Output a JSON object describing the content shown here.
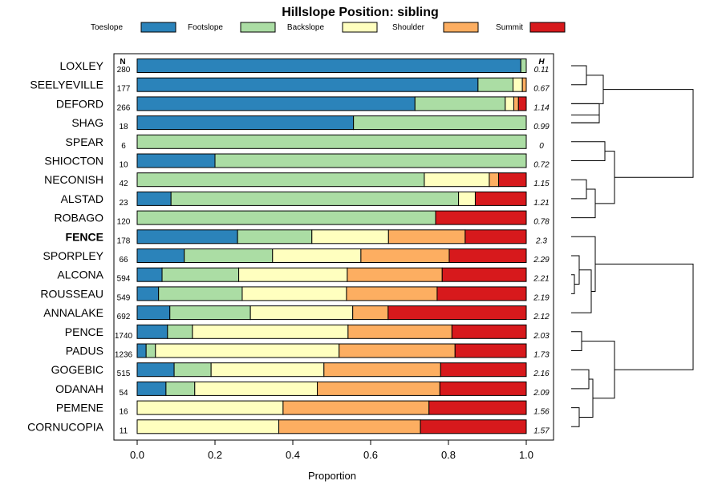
{
  "chart_data": {
    "type": "bar",
    "orientation": "horizontal",
    "stacked": true,
    "title": "Hillslope Position: sibling",
    "xlabel": "Proportion",
    "xlim": [
      0,
      1
    ],
    "xticks": [
      "0.0",
      "0.2",
      "0.4",
      "0.6",
      "0.8",
      "1.0"
    ],
    "n_header": "N",
    "h_header": "H",
    "legend": [
      {
        "name": "Toeslope",
        "color": "#2b83ba"
      },
      {
        "name": "Footslope",
        "color": "#abdda4"
      },
      {
        "name": "Backslope",
        "color": "#ffffbf"
      },
      {
        "name": "Shoulder",
        "color": "#fdae61"
      },
      {
        "name": "Summit",
        "color": "#d7191c"
      }
    ],
    "rows": [
      {
        "name": "LOXLEY",
        "n": "280",
        "h": "0.11",
        "bold": false,
        "values": [
          0.986,
          0.014,
          0,
          0,
          0
        ]
      },
      {
        "name": "SEELYEVILLE",
        "n": "177",
        "h": "0.67",
        "bold": false,
        "values": [
          0.876,
          0.09,
          0.024,
          0.01,
          0
        ]
      },
      {
        "name": "DEFORD",
        "n": "266",
        "h": "1.14",
        "bold": false,
        "values": [
          0.714,
          0.232,
          0.022,
          0.012,
          0.02
        ]
      },
      {
        "name": "SHAG",
        "n": "18",
        "h": "0.99",
        "bold": false,
        "values": [
          0.556,
          0.444,
          0,
          0,
          0
        ]
      },
      {
        "name": "SPEAR",
        "n": "6",
        "h": "0",
        "bold": false,
        "values": [
          0,
          1.0,
          0,
          0,
          0
        ]
      },
      {
        "name": "SHIOCTON",
        "n": "10",
        "h": "0.72",
        "bold": false,
        "values": [
          0.2,
          0.8,
          0,
          0,
          0
        ]
      },
      {
        "name": "NECONISH",
        "n": "42",
        "h": "1.15",
        "bold": false,
        "values": [
          0,
          0.738,
          0.167,
          0.024,
          0.071
        ]
      },
      {
        "name": "ALSTAD",
        "n": "23",
        "h": "1.21",
        "bold": false,
        "values": [
          0.087,
          0.739,
          0.043,
          0,
          0.131
        ]
      },
      {
        "name": "ROBAGO",
        "n": "120",
        "h": "0.78",
        "bold": false,
        "values": [
          0,
          0.767,
          0,
          0,
          0.233
        ]
      },
      {
        "name": "FENCE",
        "n": "178",
        "h": "2.3",
        "bold": true,
        "values": [
          0.258,
          0.191,
          0.197,
          0.197,
          0.157
        ]
      },
      {
        "name": "SPORPLEY",
        "n": "66",
        "h": "2.29",
        "bold": false,
        "values": [
          0.121,
          0.227,
          0.227,
          0.227,
          0.198
        ]
      },
      {
        "name": "ALCONA",
        "n": "594",
        "h": "2.21",
        "bold": false,
        "values": [
          0.064,
          0.197,
          0.279,
          0.244,
          0.216
        ]
      },
      {
        "name": "ROUSSEAU",
        "n": "549",
        "h": "2.19",
        "bold": false,
        "values": [
          0.055,
          0.215,
          0.268,
          0.233,
          0.229
        ]
      },
      {
        "name": "ANNALAKE",
        "n": "692",
        "h": "2.12",
        "bold": false,
        "values": [
          0.084,
          0.207,
          0.263,
          0.091,
          0.355
        ]
      },
      {
        "name": "PENCE",
        "n": "1740",
        "h": "2.03",
        "bold": false,
        "values": [
          0.078,
          0.064,
          0.4,
          0.267,
          0.191
        ]
      },
      {
        "name": "PADUS",
        "n": "1236",
        "h": "1.73",
        "bold": false,
        "values": [
          0.023,
          0.024,
          0.472,
          0.298,
          0.183
        ]
      },
      {
        "name": "GOGEBIC",
        "n": "515",
        "h": "2.16",
        "bold": false,
        "values": [
          0.095,
          0.095,
          0.29,
          0.3,
          0.22
        ]
      },
      {
        "name": "ODANAH",
        "n": "54",
        "h": "2.09",
        "bold": false,
        "values": [
          0.074,
          0.074,
          0.315,
          0.315,
          0.222
        ]
      },
      {
        "name": "PEMENE",
        "n": "16",
        "h": "1.56",
        "bold": false,
        "values": [
          0,
          0,
          0.375,
          0.375,
          0.25
        ]
      },
      {
        "name": "CORNUCOPIA",
        "n": "11",
        "h": "1.57",
        "bold": false,
        "values": [
          0,
          0,
          0.364,
          0.364,
          0.272
        ]
      }
    ]
  }
}
